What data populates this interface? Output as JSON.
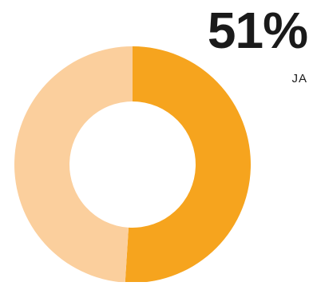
{
  "chart_data": {
    "type": "pie",
    "style": "donut",
    "categories": [
      "JA",
      ""
    ],
    "values": [
      51,
      49
    ],
    "colors": [
      "#f6a41e",
      "#fbcf9d"
    ],
    "headline_value": "51%",
    "headline_label": "JA"
  }
}
